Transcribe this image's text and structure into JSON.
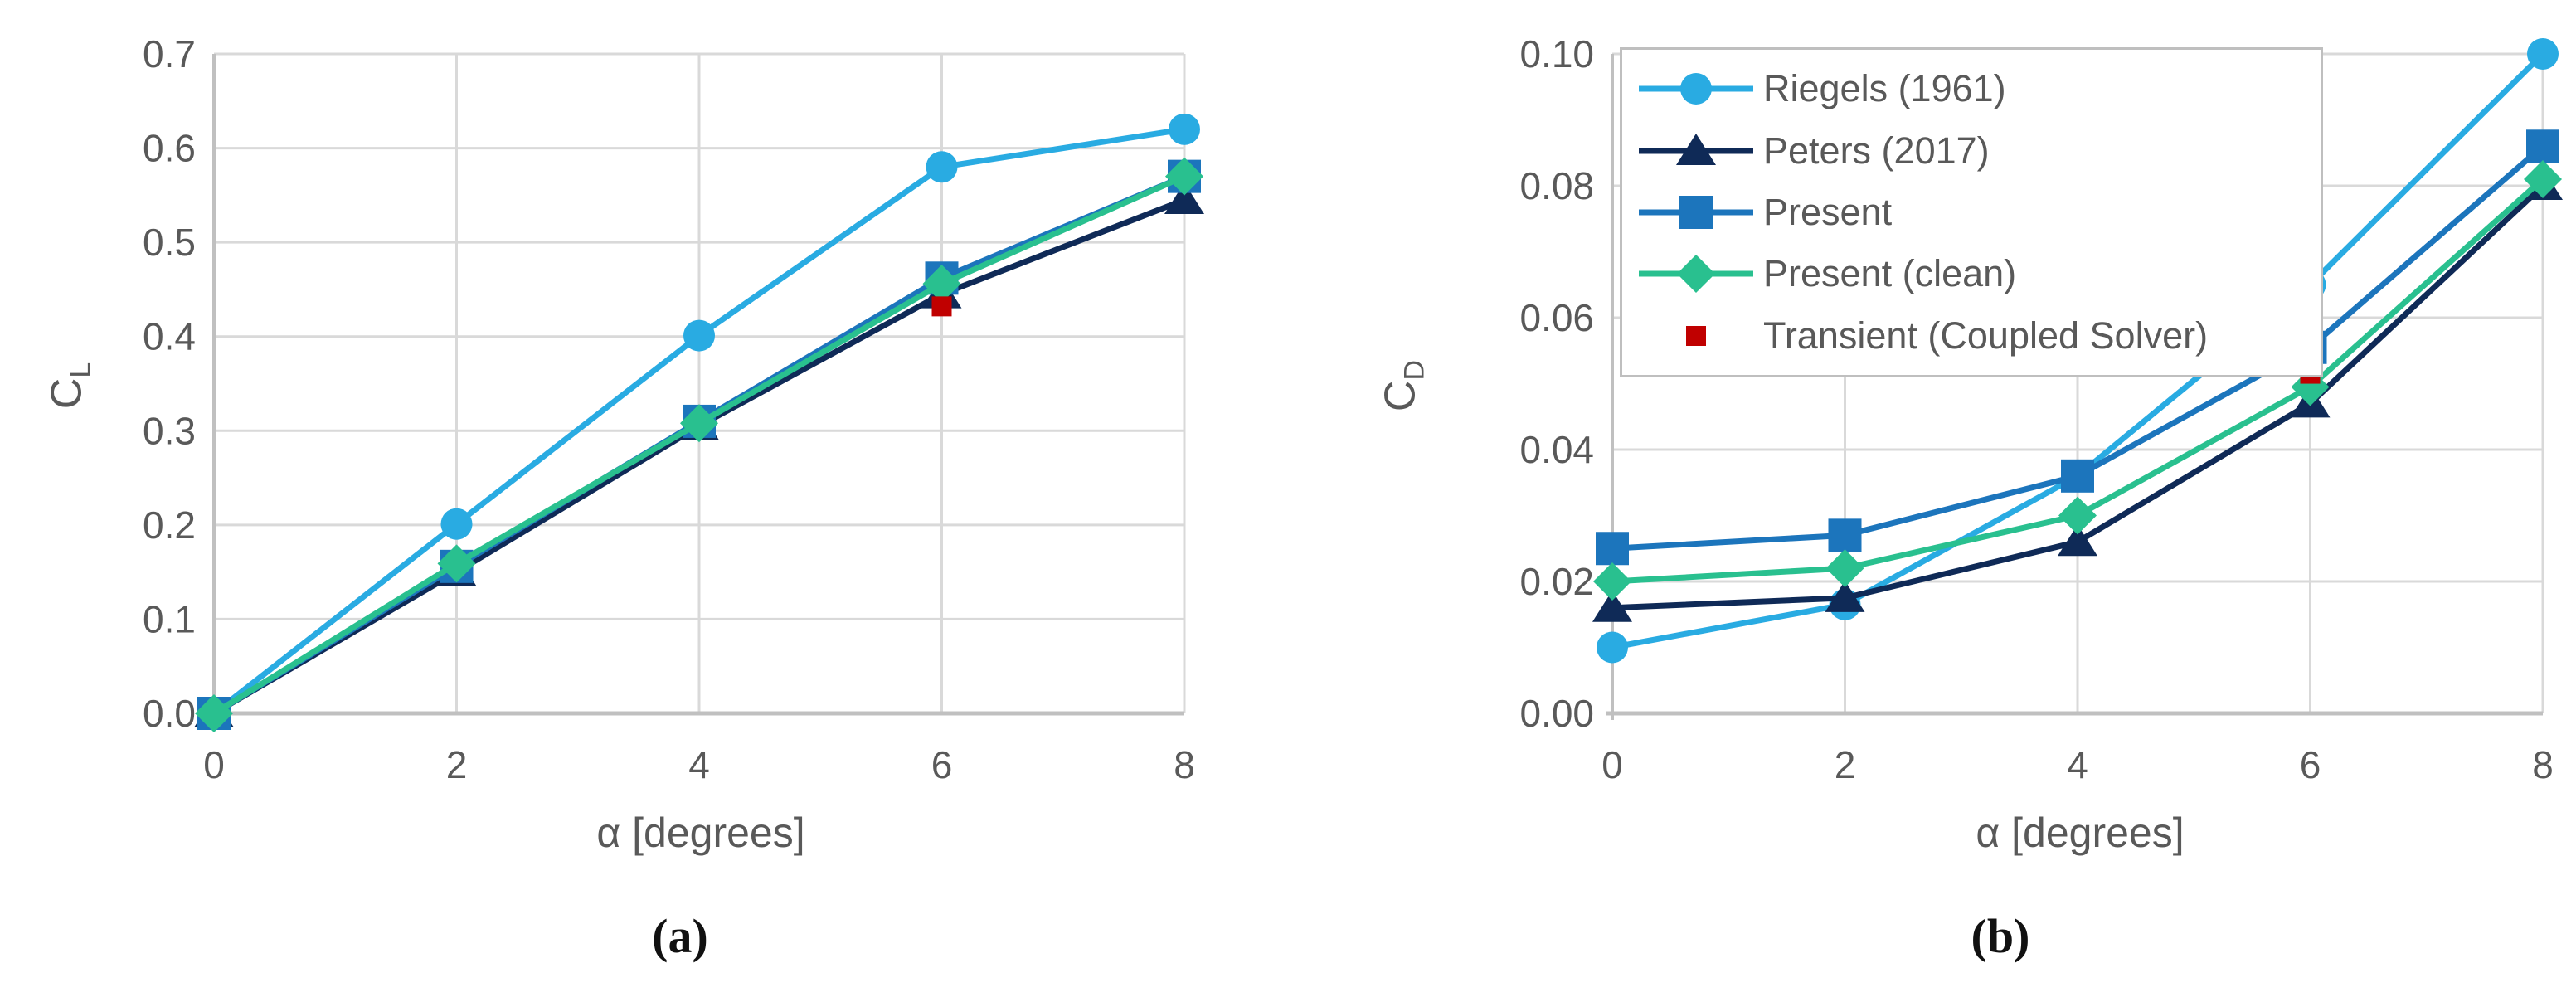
{
  "figure": {
    "description": "Two-panel line chart comparing lift and drag coefficients versus angle of attack",
    "caption_a": "(a)",
    "caption_b": "(b)"
  },
  "colors": {
    "riegels": "#29abe2",
    "peters": "#0f2a57",
    "present": "#1c75bc",
    "present_clean": "#29c08f",
    "transient": "#c00000",
    "gridline": "#d9d9d9",
    "axis": "#c0c0c0",
    "tick_text": "#595959"
  },
  "legend": {
    "position": "top-left-of-right-chart",
    "entries": [
      {
        "label": "Riegels (1961)",
        "color": "#29abe2",
        "marker": "circle",
        "line": true
      },
      {
        "label": "Peters (2017)",
        "color": "#0f2a57",
        "marker": "triangle",
        "line": true
      },
      {
        "label": "Present",
        "color": "#1c75bc",
        "marker": "square",
        "line": true
      },
      {
        "label": "Present (clean)",
        "color": "#29c08f",
        "marker": "diamond",
        "line": true
      },
      {
        "label": "Transient (Coupled Solver)",
        "color": "#c00000",
        "marker": "small-square",
        "line": false
      }
    ]
  },
  "chart_data": [
    {
      "id": "cl-vs-alpha",
      "type": "line",
      "caption": "(a)",
      "xlabel": "α [degrees]",
      "ylabel": {
        "base": "C",
        "sub": "L"
      },
      "x": [
        0,
        2,
        4,
        6,
        8
      ],
      "xlim": [
        0,
        8
      ],
      "ylim": [
        0,
        0.7
      ],
      "x_tick_labels": [
        "0",
        "2",
        "4",
        "6",
        "8"
      ],
      "y_tick_values": [
        0.0,
        0.1,
        0.2,
        0.3,
        0.4,
        0.5,
        0.6,
        0.7
      ],
      "y_tick_labels": [
        "0.0",
        "0.1",
        "0.2",
        "0.3",
        "0.4",
        "0.5",
        "0.6",
        "0.7"
      ],
      "grid": true,
      "legend_visible": false,
      "series": [
        {
          "name": "Riegels (1961)",
          "color": "#29abe2",
          "marker": "circle",
          "line": true,
          "values": [
            0.0,
            0.201,
            0.401,
            0.58,
            0.62
          ]
        },
        {
          "name": "Peters (2017)",
          "color": "#0f2a57",
          "marker": "triangle",
          "line": true,
          "values": [
            0.0,
            0.15,
            0.305,
            0.445,
            0.545
          ]
        },
        {
          "name": "Present",
          "color": "#1c75bc",
          "marker": "square",
          "line": true,
          "values": [
            0.0,
            0.156,
            0.31,
            0.462,
            0.57
          ]
        },
        {
          "name": "Present (clean)",
          "color": "#29c08f",
          "marker": "diamond",
          "line": true,
          "values": [
            0.0,
            0.159,
            0.308,
            0.456,
            0.57
          ]
        },
        {
          "name": "Transient (Coupled Solver)",
          "color": "#c00000",
          "marker": "small-square",
          "line": false,
          "points": [
            [
              6,
              0.432
            ]
          ]
        }
      ]
    },
    {
      "id": "cd-vs-alpha",
      "type": "line",
      "caption": "(b)",
      "xlabel": "α [degrees]",
      "ylabel": {
        "base": "C",
        "sub": "D"
      },
      "x": [
        0,
        2,
        4,
        6,
        8
      ],
      "xlim": [
        0,
        8
      ],
      "ylim": [
        0,
        0.1
      ],
      "x_tick_labels": [
        "0",
        "2",
        "4",
        "6",
        "8"
      ],
      "y_tick_values": [
        0.0,
        0.02,
        0.04,
        0.06,
        0.08,
        0.1
      ],
      "y_tick_labels": [
        "0.00",
        "0.02",
        "0.04",
        "0.06",
        "0.08",
        "0.10"
      ],
      "grid": true,
      "legend_visible": true,
      "series": [
        {
          "name": "Riegels (1961)",
          "color": "#29abe2",
          "marker": "circle",
          "line": true,
          "values": [
            0.01,
            0.0165,
            0.036,
            0.065,
            0.1
          ]
        },
        {
          "name": "Peters (2017)",
          "color": "#0f2a57",
          "marker": "triangle",
          "line": true,
          "values": [
            0.016,
            0.0175,
            0.026,
            0.047,
            0.08
          ]
        },
        {
          "name": "Present",
          "color": "#1c75bc",
          "marker": "square",
          "line": true,
          "values": [
            0.025,
            0.027,
            0.036,
            0.0555,
            0.086
          ]
        },
        {
          "name": "Present (clean)",
          "color": "#29c08f",
          "marker": "diamond",
          "line": true,
          "values": [
            0.02,
            0.022,
            0.03,
            0.0495,
            0.081
          ]
        },
        {
          "name": "Transient (Coupled Solver)",
          "color": "#c00000",
          "marker": "small-square",
          "line": false,
          "points": [
            [
              6,
              0.0515
            ]
          ]
        }
      ]
    }
  ]
}
